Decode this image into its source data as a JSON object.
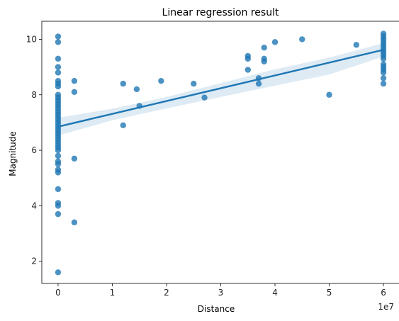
{
  "chart_data": {
    "type": "scatter",
    "title": "Linear regression result",
    "xlabel": "Distance",
    "ylabel": "Magnitude",
    "x_offset_label": "1e7",
    "xlim": [
      -3000000,
      63000000
    ],
    "ylim": [
      1.2,
      10.65
    ],
    "x_ticks": [
      0,
      10000000,
      20000000,
      30000000,
      40000000,
      50000000,
      60000000
    ],
    "x_tick_labels": [
      "0",
      "1",
      "2",
      "3",
      "4",
      "5",
      "6"
    ],
    "y_ticks": [
      2,
      4,
      6,
      8,
      10
    ],
    "y_tick_labels": [
      "2",
      "4",
      "6",
      "8",
      "10"
    ],
    "grid": false,
    "colors": {
      "points": "#1f77b4",
      "line": "#1f77b4",
      "band": "#1f77b4"
    },
    "series": [
      {
        "points": [
          [
            0,
            10.1
          ],
          [
            0,
            9.9
          ],
          [
            0,
            9.3
          ],
          [
            0,
            9.0
          ],
          [
            0,
            8.8
          ],
          [
            0,
            8.5
          ],
          [
            0,
            8.4
          ],
          [
            0,
            8.3
          ],
          [
            0,
            8.0
          ],
          [
            0,
            7.9
          ],
          [
            0,
            7.8
          ],
          [
            0,
            7.7
          ],
          [
            0,
            7.6
          ],
          [
            0,
            7.5
          ],
          [
            0,
            7.4
          ],
          [
            0,
            7.3
          ],
          [
            0,
            7.2
          ],
          [
            0,
            7.1
          ],
          [
            0,
            7.0
          ],
          [
            0,
            6.9
          ],
          [
            0,
            6.8
          ],
          [
            0,
            6.7
          ],
          [
            0,
            6.6
          ],
          [
            0,
            6.5
          ],
          [
            0,
            6.4
          ],
          [
            0,
            6.3
          ],
          [
            0,
            6.2
          ],
          [
            0,
            6.1
          ],
          [
            0,
            6.0
          ],
          [
            0,
            5.8
          ],
          [
            0,
            5.6
          ],
          [
            0,
            5.5
          ],
          [
            0,
            5.3
          ],
          [
            0,
            5.2
          ],
          [
            0,
            4.6
          ],
          [
            0,
            4.1
          ],
          [
            0,
            4.0
          ],
          [
            0,
            3.7
          ],
          [
            0,
            1.6
          ],
          [
            3000000,
            8.5
          ],
          [
            3000000,
            8.1
          ],
          [
            3000000,
            5.7
          ],
          [
            3000000,
            3.4
          ],
          [
            12000000,
            8.4
          ],
          [
            12000000,
            6.9
          ],
          [
            14500000,
            8.2
          ],
          [
            15000000,
            7.6
          ],
          [
            19000000,
            8.5
          ],
          [
            25000000,
            8.4
          ],
          [
            27000000,
            7.9
          ],
          [
            35000000,
            9.4
          ],
          [
            35000000,
            9.3
          ],
          [
            35000000,
            8.9
          ],
          [
            37000000,
            8.6
          ],
          [
            37000000,
            8.4
          ],
          [
            38000000,
            9.7
          ],
          [
            38000000,
            9.3
          ],
          [
            38000000,
            9.2
          ],
          [
            40000000,
            9.9
          ],
          [
            45000000,
            10.0
          ],
          [
            50000000,
            8.0
          ],
          [
            55000000,
            9.8
          ],
          [
            60000000,
            10.2
          ],
          [
            60000000,
            10.1
          ],
          [
            60000000,
            10.0
          ],
          [
            60000000,
            9.9
          ],
          [
            60000000,
            9.8
          ],
          [
            60000000,
            9.7
          ],
          [
            60000000,
            9.6
          ],
          [
            60000000,
            9.5
          ],
          [
            60000000,
            9.4
          ],
          [
            60000000,
            9.3
          ],
          [
            60000000,
            9.1
          ],
          [
            60000000,
            9.0
          ],
          [
            60000000,
            8.9
          ],
          [
            60000000,
            8.8
          ],
          [
            60000000,
            8.6
          ],
          [
            60000000,
            8.4
          ]
        ]
      }
    ],
    "regression": {
      "x_range": [
        0,
        60000000
      ],
      "y_start": 6.85,
      "y_end": 9.62
    },
    "confidence_band": {
      "x": [
        0,
        10000000,
        20000000,
        30000000,
        40000000,
        50000000,
        60000000
      ],
      "lower": [
        6.53,
        7.08,
        7.51,
        7.92,
        8.33,
        8.73,
        9.38
      ],
      "upper": [
        7.17,
        7.5,
        7.92,
        8.42,
        8.92,
        9.34,
        9.86
      ]
    }
  }
}
